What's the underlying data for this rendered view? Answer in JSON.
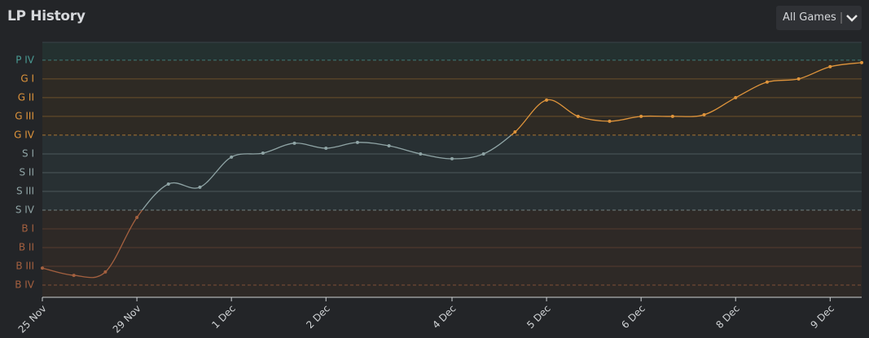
{
  "header": {
    "title": "LP History",
    "filter": "All Games"
  },
  "chart_data": {
    "type": "line",
    "categories": [
      "25 Nov",
      null,
      null,
      "29 Nov",
      null,
      null,
      "1 Dec",
      null,
      null,
      "2 Dec",
      null,
      null,
      null,
      "4 Dec",
      null,
      null,
      "5 Dec",
      null,
      null,
      "6 Dec",
      null,
      null,
      "8 Dec",
      null,
      null,
      "9 Dec",
      null
    ],
    "series": [
      {
        "values": [
          91,
          52,
          70,
          361,
          539,
          522,
          683,
          704,
          757,
          730,
          761,
          743,
          700,
          674,
          700,
          817,
          987,
          900,
          874,
          900,
          900,
          909,
          1000,
          1083,
          1100,
          1165,
          1187
        ]
      }
    ],
    "ylim": [
      -65,
      1295
    ],
    "yticks": [
      {
        "value": 0,
        "label": "B IV"
      },
      {
        "value": 100,
        "label": "B III"
      },
      {
        "value": 200,
        "label": "B II"
      },
      {
        "value": 300,
        "label": "B I"
      },
      {
        "value": 400,
        "label": "S IV"
      },
      {
        "value": 500,
        "label": "S III"
      },
      {
        "value": 600,
        "label": "S II"
      },
      {
        "value": 700,
        "label": "S I"
      },
      {
        "value": 800,
        "label": "G IV"
      },
      {
        "value": 900,
        "label": "G III"
      },
      {
        "value": 1000,
        "label": "G II"
      },
      {
        "value": 1100,
        "label": "G I"
      },
      {
        "value": 1200,
        "label": "P IV"
      }
    ],
    "tier_colors": [
      "#a4603f",
      "#8fa4a5",
      "#df943b",
      "#4a9b94"
    ],
    "band_colors": [
      "#2e2926",
      "#283033",
      "#2e2a24",
      "#243130"
    ],
    "grid": true
  }
}
